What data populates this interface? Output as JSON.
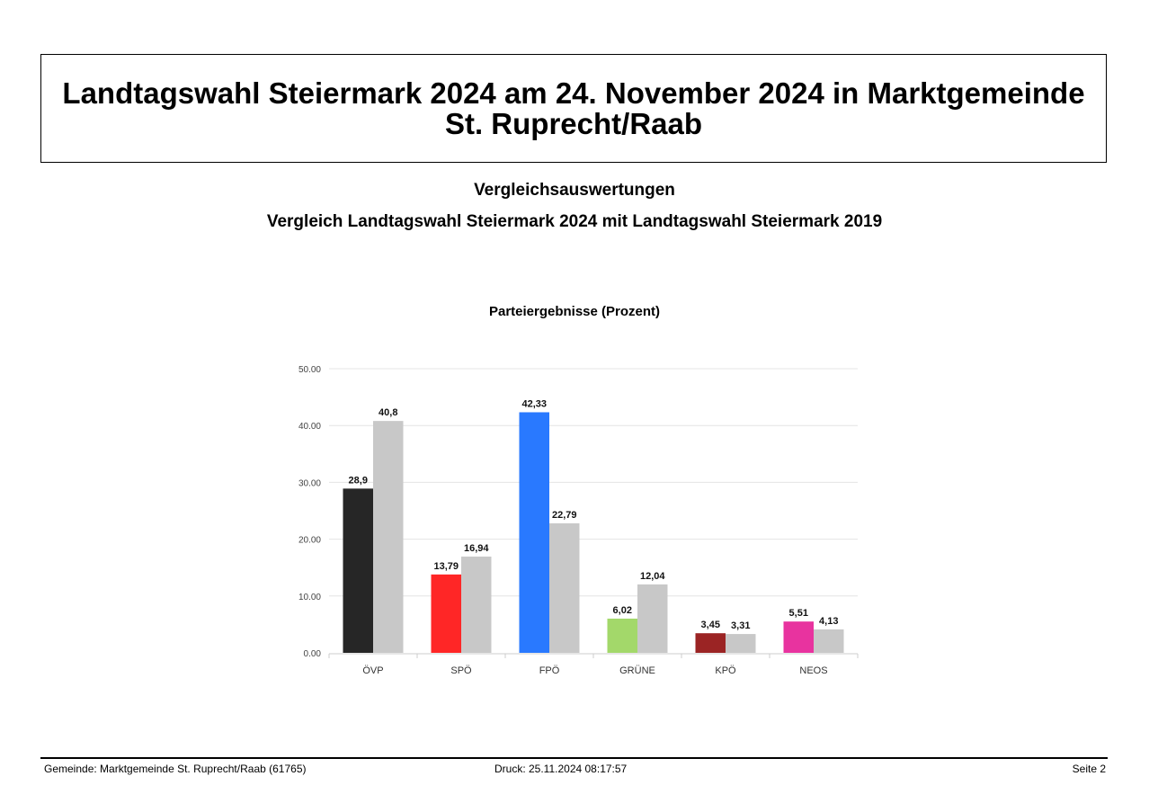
{
  "header": {
    "title_line1": "Landtagswahl Steiermark 2024 am 24. November 2024 in Marktgemeinde",
    "title_line2": "St. Ruprecht/Raab",
    "subtitle": "Vergleichsauswertungen",
    "comparison": "Vergleich Landtagswahl Steiermark 2024 mit Landtagswahl Steiermark 2019"
  },
  "chart_data": {
    "type": "bar",
    "title": "Parteiergebnisse (Prozent)",
    "xlabel": "",
    "ylabel": "",
    "ylim": [
      0,
      50
    ],
    "yticks": [
      "0.00",
      "10.00",
      "20.00",
      "30.00",
      "40.00",
      "50.00"
    ],
    "grid": true,
    "categories": [
      "ÖVP",
      "SPÖ",
      "FPÖ",
      "GRÜNE",
      "KPÖ",
      "NEOS"
    ],
    "series": [
      {
        "values": [
          28.9,
          13.79,
          42.33,
          6.02,
          3.45,
          5.51
        ],
        "labels": [
          "28,9",
          "13,79",
          "42,33",
          "6,02",
          "3,45",
          "5,51"
        ],
        "colors": [
          "#262626",
          "#ff2626",
          "#2979ff",
          "#a3d86a",
          "#9b2424",
          "#e8339f"
        ]
      },
      {
        "values": [
          40.8,
          16.94,
          22.79,
          12.04,
          3.31,
          4.13
        ],
        "labels": [
          "40,8",
          "16,94",
          "22,79",
          "12,04",
          "3,31",
          "4,13"
        ],
        "colors": [
          "#c8c8c8",
          "#c8c8c8",
          "#c8c8c8",
          "#c8c8c8",
          "#c8c8c8",
          "#c8c8c8"
        ]
      }
    ]
  },
  "footer": {
    "gemeinde": "Gemeinde: Marktgemeinde St. Ruprecht/Raab (61765)",
    "druck": "Druck: 25.11.2024 08:17:57",
    "seite": "Seite 2"
  }
}
